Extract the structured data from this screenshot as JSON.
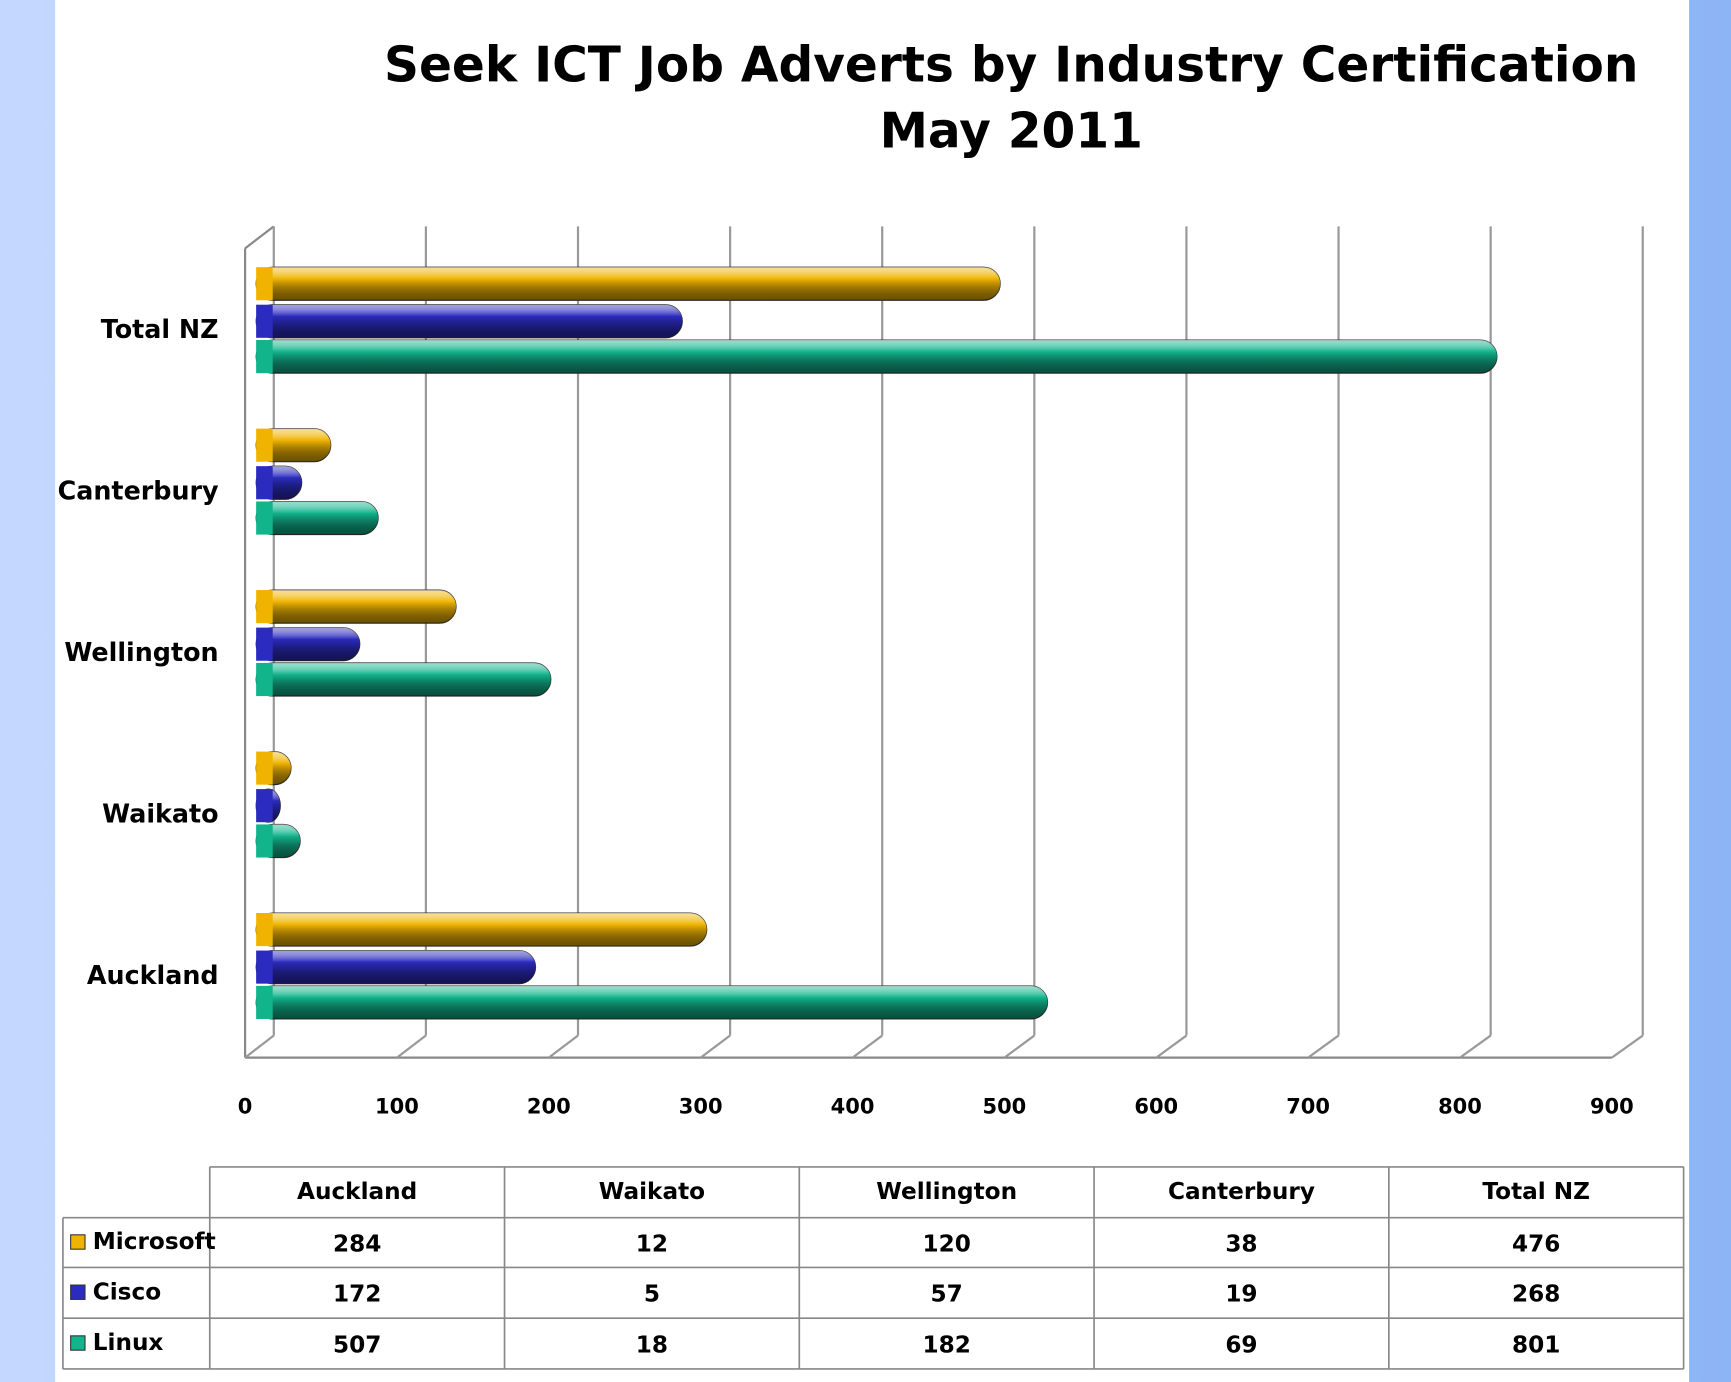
{
  "chart_data": {
    "type": "bar",
    "orientation": "horizontal",
    "title": "Seek ICT Job Adverts by Industry Certification",
    "subtitle": "May 2011",
    "categories": [
      "Auckland",
      "Waikato",
      "Wellington",
      "Canterbury",
      "Total NZ"
    ],
    "series": [
      {
        "name": "Microsoft",
        "color": "#f0b400",
        "values": [
          284,
          12,
          120,
          38,
          476
        ]
      },
      {
        "name": "Cisco",
        "color": "#2b2bbf",
        "values": [
          172,
          5,
          57,
          19,
          268
        ]
      },
      {
        "name": "Linux",
        "color": "#12b48c",
        "values": [
          507,
          18,
          182,
          69,
          801
        ]
      }
    ],
    "xlim": [
      0,
      900
    ],
    "xticks": [
      0,
      100,
      200,
      300,
      400,
      500,
      600,
      700,
      800,
      900
    ],
    "grid": true,
    "data_table": true
  }
}
